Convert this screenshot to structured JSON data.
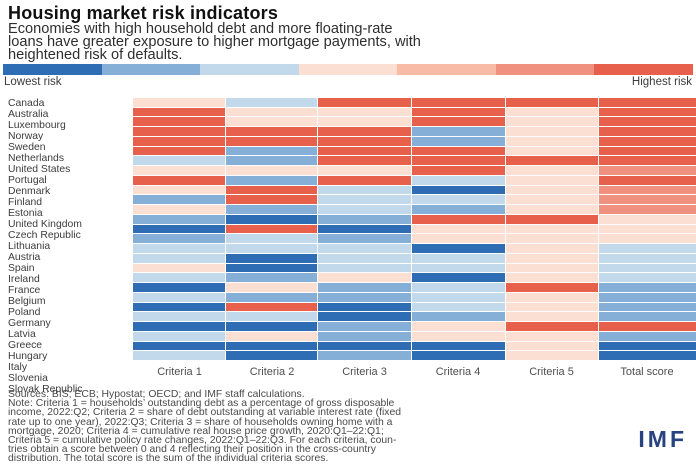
{
  "header": {
    "title": "Housing market risk indicators",
    "subtitle_lines": [
      "Economies with high household debt and more floating-rate",
      "loans have greater exposure to higher mortgage payments, with",
      "heightened risk of defaults."
    ]
  },
  "legend": {
    "low_label": "Lowest risk",
    "high_label": "Highest risk",
    "segments": [
      "#2e6db4",
      "#86afd7",
      "#c2d8eb",
      "#fbdfd3",
      "#f7bba6",
      "#f0907e",
      "#e7604c"
    ]
  },
  "chart_data": {
    "type": "heatmap",
    "title": "Housing market risk indicators",
    "columns": [
      "Criteria 1",
      "Criteria 2",
      "Criteria 3",
      "Criteria 4",
      "Criteria 5",
      "Total score"
    ],
    "palette": {
      "db": "#2e6db4",
      "mb": "#86afd7",
      "lb": "#c2d8eb",
      "cr": "#fbdfd3",
      "sa": "#f0907e",
      "re": "#e7604c"
    },
    "palette_meaning": {
      "db": "lowest risk",
      "mb": "low risk",
      "lb": "moderately low risk",
      "cr": "moderately high risk",
      "sa": "high risk",
      "re": "highest risk"
    },
    "rows": [
      {
        "country": "Canada",
        "cells": [
          "cr",
          "lb",
          "re",
          "re",
          "re",
          "re"
        ]
      },
      {
        "country": "Australia",
        "cells": [
          "re",
          "cr",
          "cr",
          "re",
          "cr",
          "re"
        ]
      },
      {
        "country": "Luxembourg",
        "cells": [
          "re",
          "cr",
          "cr",
          "re",
          "cr",
          "re"
        ]
      },
      {
        "country": "Norway",
        "cells": [
          "re",
          "re",
          "re",
          "mb",
          "cr",
          "re"
        ]
      },
      {
        "country": "Sweden",
        "cells": [
          "re",
          "re",
          "re",
          "mb",
          "cr",
          "re"
        ]
      },
      {
        "country": "Netherlands",
        "cells": [
          "re",
          "mb",
          "re",
          "re",
          "cr",
          "re"
        ]
      },
      {
        "country": "United States",
        "cells": [
          "lb",
          "mb",
          "re",
          "re",
          "re",
          "re"
        ]
      },
      {
        "country": "Portugal",
        "cells": [
          "cr",
          "cr",
          "cr",
          "re",
          "cr",
          "sa"
        ]
      },
      {
        "country": "Denmark",
        "cells": [
          "re",
          "mb",
          "re",
          "lb",
          "cr",
          "re"
        ]
      },
      {
        "country": "Finland",
        "cells": [
          "cr",
          "re",
          "lb",
          "db",
          "cr",
          "sa"
        ]
      },
      {
        "country": "Estonia",
        "cells": [
          "mb",
          "re",
          "lb",
          "lb",
          "cr",
          "sa"
        ]
      },
      {
        "country": "United Kingdom",
        "cells": [
          "cr",
          "mb",
          "lb",
          "mb",
          "cr",
          "sa"
        ]
      },
      {
        "country": "Czech Republic",
        "cells": [
          "mb",
          "db",
          "mb",
          "re",
          "re",
          "cr"
        ]
      },
      {
        "country": "Lithuania",
        "cells": [
          "db",
          "re",
          "db",
          "cr",
          "cr",
          "cr"
        ]
      },
      {
        "country": "Austria",
        "cells": [
          "mb",
          "lb",
          "mb",
          "cr",
          "cr",
          "cr"
        ]
      },
      {
        "country": "Spain",
        "cells": [
          "lb",
          "lb",
          "lb",
          "db",
          "cr",
          "lb"
        ]
      },
      {
        "country": "Ireland",
        "cells": [
          "lb",
          "db",
          "lb",
          "lb",
          "cr",
          "lb"
        ]
      },
      {
        "country": "France",
        "cells": [
          "cr",
          "db",
          "lb",
          "lb",
          "cr",
          "lb"
        ]
      },
      {
        "country": "Belgium",
        "cells": [
          "lb",
          "mb",
          "cr",
          "db",
          "cr",
          "lb"
        ]
      },
      {
        "country": "Poland",
        "cells": [
          "db",
          "cr",
          "mb",
          "lb",
          "re",
          "mb"
        ]
      },
      {
        "country": "Germany",
        "cells": [
          "lb",
          "mb",
          "mb",
          "lb",
          "cr",
          "mb"
        ]
      },
      {
        "country": "Latvia",
        "cells": [
          "db",
          "re",
          "db",
          "lb",
          "cr",
          "mb"
        ]
      },
      {
        "country": "Greece",
        "cells": [
          "lb",
          "lb",
          "db",
          "mb",
          "cr",
          "mb"
        ]
      },
      {
        "country": "Hungary",
        "cells": [
          "db",
          "db",
          "mb",
          "cr",
          "re",
          "re"
        ]
      },
      {
        "country": "Italy",
        "cells": [
          "lb",
          "cr",
          "mb",
          "cr",
          "cr",
          "mb"
        ]
      },
      {
        "country": "Slovenia",
        "cells": [
          "db",
          "db",
          "db",
          "db",
          "cr",
          "db"
        ]
      },
      {
        "country": "Slovak Republic",
        "cells": [
          "lb",
          "db",
          "mb",
          "db",
          "cr",
          "db"
        ]
      }
    ]
  },
  "footer": {
    "lines": [
      "Sources: BIS; ECB; Hypostat; OECD; and IMF staff calculations.",
      "Note: Criteria 1 = households’ outstanding debt as a percentage of gross disposable",
      "income, 2022:Q2; Criteria 2 = share of debt outstanding at variable interest rate (fixed",
      "rate up to one year), 2022:Q3; Criteria 3 = share of households owning home with a",
      "mortgage, 2020; Criteria 4 = cumulative real house price growth, 2020:Q1–22:Q1;",
      "Criteria 5 = cumulative policy rate changes, 2022:Q1–22:Q3. For each criteria, coun-",
      "tries obtain a score between 0 and 4 reflecting their position in the cross-country",
      "distribution. The total score is the sum of the individual criteria scores."
    ],
    "logo_text": "IMF"
  }
}
